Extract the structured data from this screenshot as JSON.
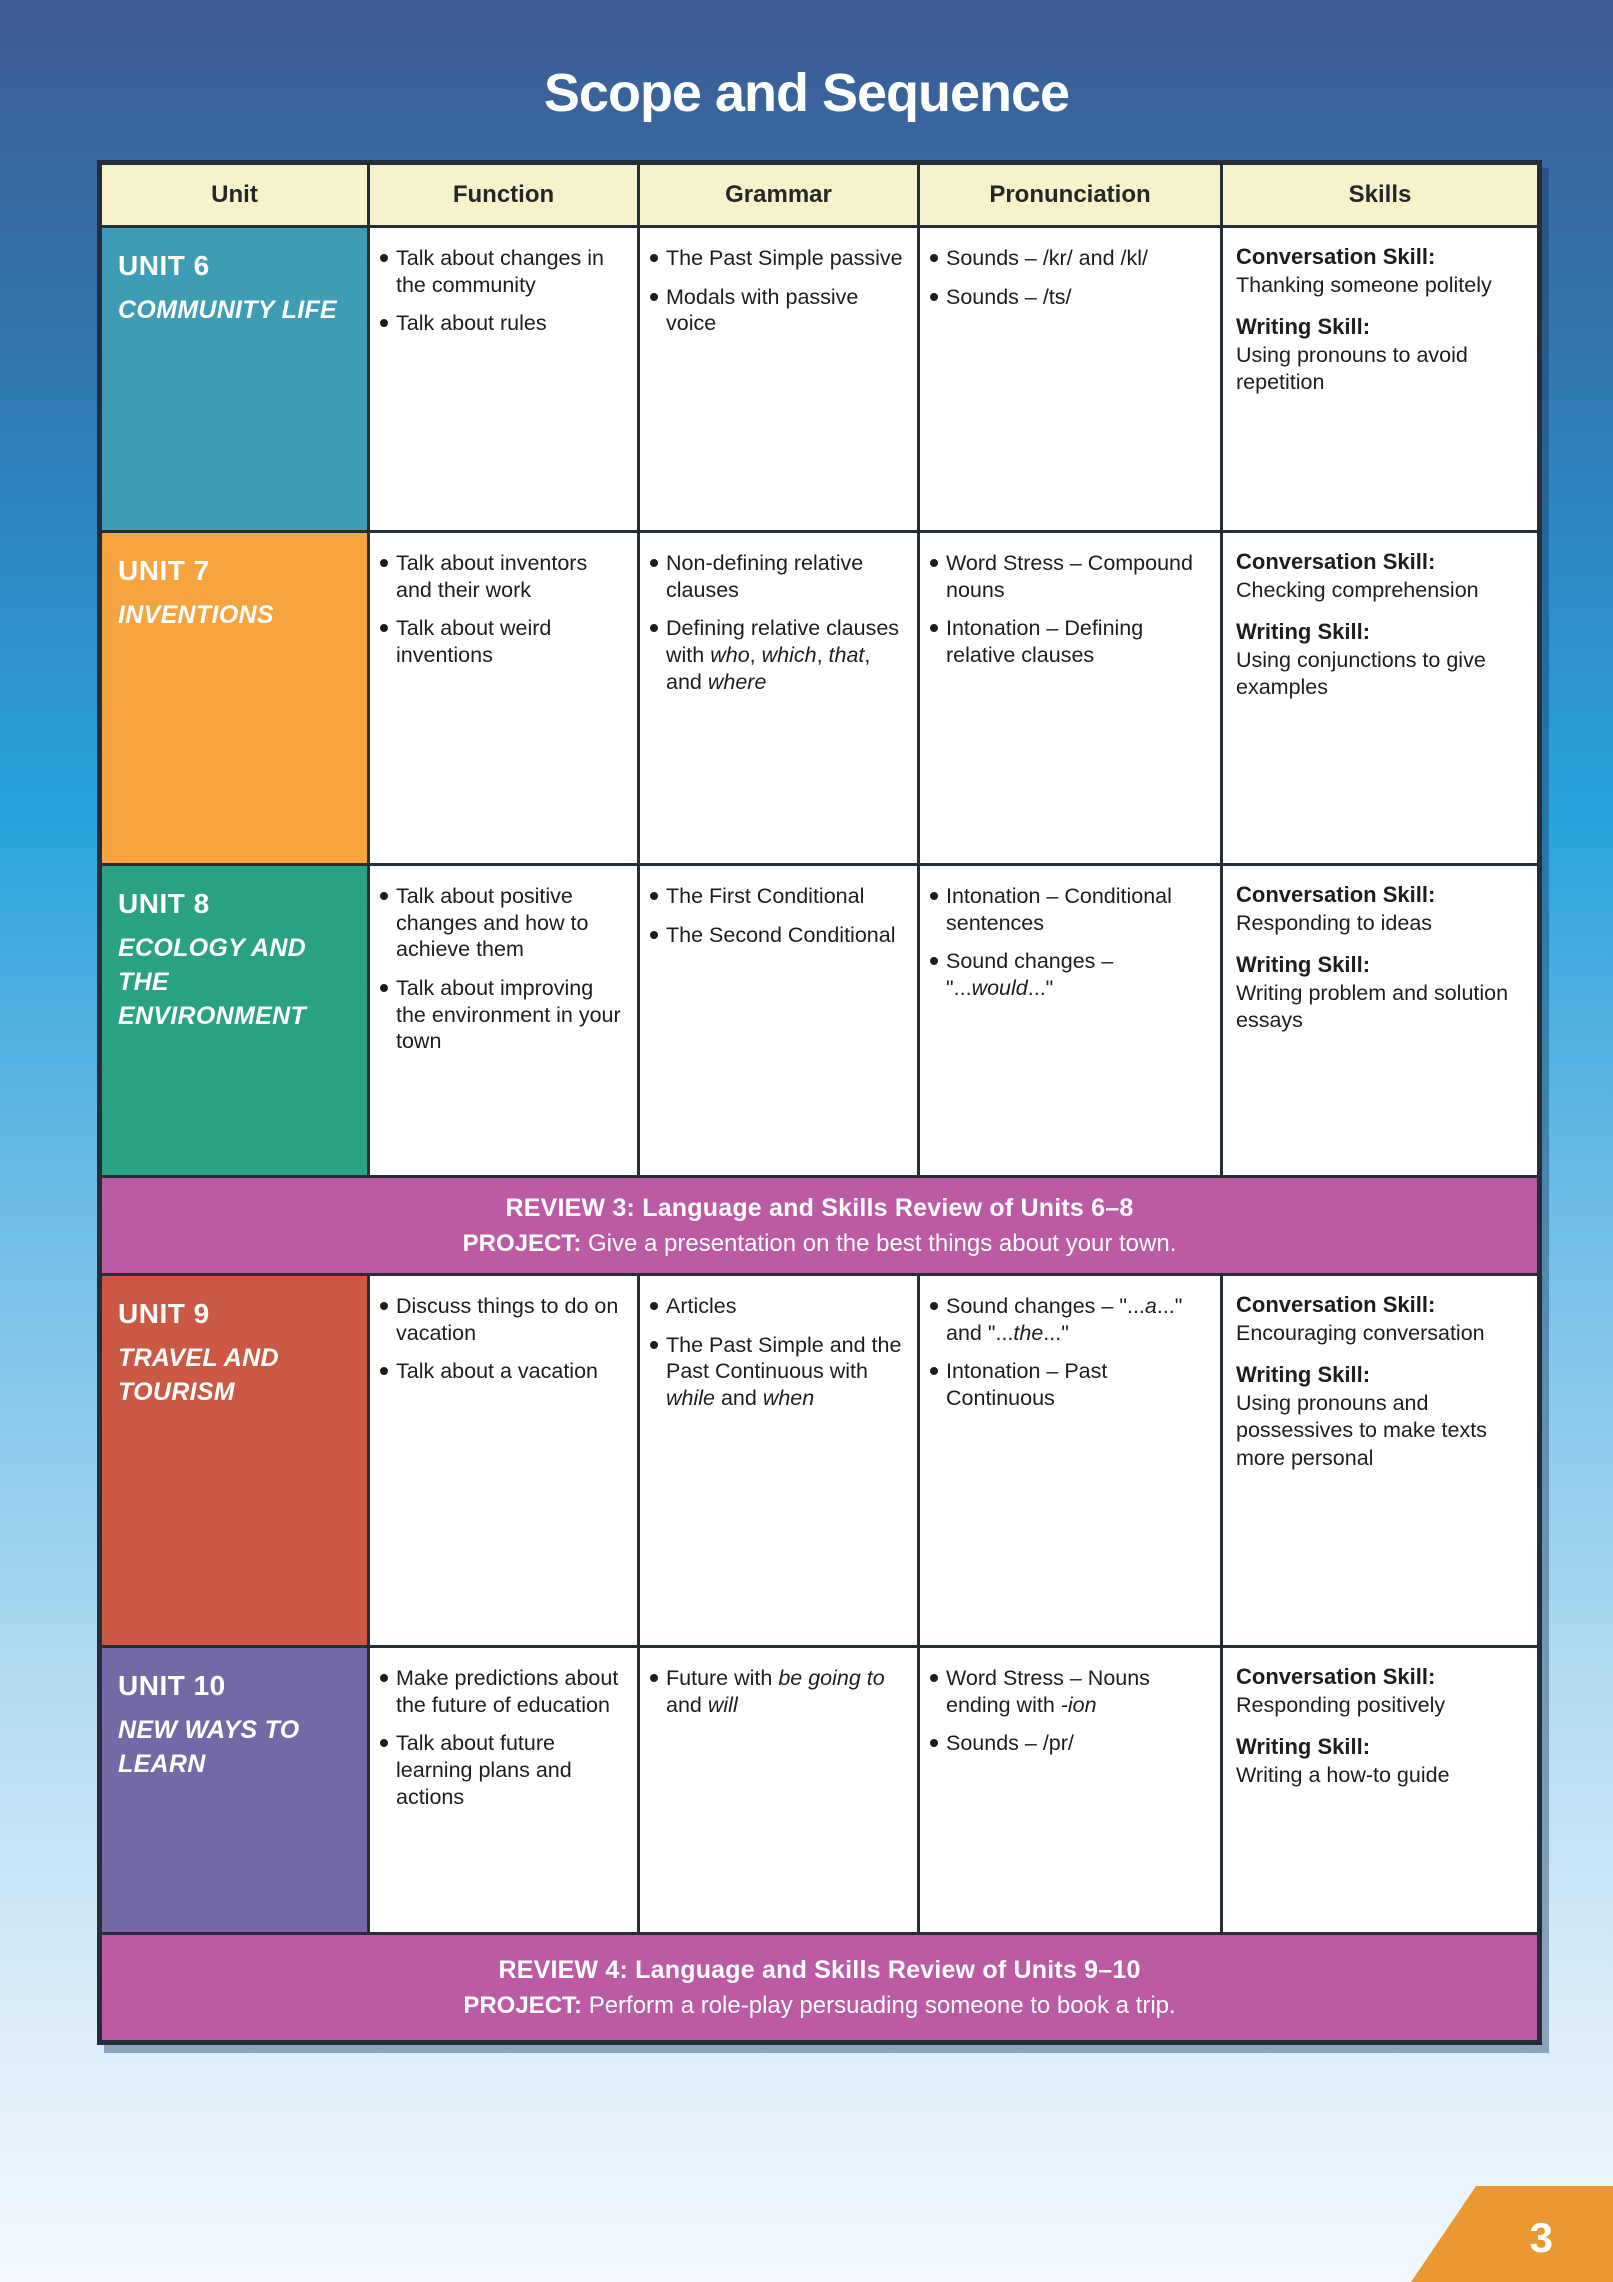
{
  "page": {
    "title": "Scope and Sequence",
    "page_number": "3"
  },
  "colors": {
    "background_top": "#3d5b94",
    "background_mid": "#2aa3dc",
    "background_bottom": "#f2f8fd",
    "header_bg": "#f6f3cc",
    "table_border": "#252e36",
    "review_bg": "#bc5ba4",
    "corner_bg": "#e9992f",
    "body_text": "#1d1d1b"
  },
  "table": {
    "headers": [
      "Unit",
      "Function",
      "Grammar",
      "Pronunciation",
      "Skills"
    ],
    "rows": [
      {
        "type": "unit",
        "id": "UNIT 6",
        "title": "COMMUNITY LIFE",
        "color": "#3e9db5",
        "function": [
          "Talk about changes in the community",
          "Talk about rules"
        ],
        "grammar": [
          "The Past Simple passive",
          "Modals with passive voice"
        ],
        "pronunciation": [
          "Sounds – /kr/ and /kl/",
          "Sounds – /ts/"
        ],
        "skills": {
          "conversation_label": "Conversation Skill:",
          "conversation": "Thanking someone politely",
          "writing_label": "Writing Skill:",
          "writing": "Using pronouns to avoid repetition"
        }
      },
      {
        "type": "unit",
        "id": "UNIT 7",
        "title": "INVENTIONS",
        "color": "#f5a440",
        "function": [
          "Talk about inventors and their work",
          "Talk about weird inventions"
        ],
        "grammar": [
          "Non-defining relative clauses",
          "Defining relative clauses with *who*, *which*, *that*, and *where*"
        ],
        "pronunciation": [
          "Word Stress – Compound nouns",
          "Intonation – Defining relative clauses"
        ],
        "skills": {
          "conversation_label": "Conversation Skill:",
          "conversation": "Checking comprehension",
          "writing_label": "Writing Skill:",
          "writing": "Using conjunctions to give examples"
        }
      },
      {
        "type": "unit",
        "id": "UNIT 8",
        "title": "ECOLOGY AND THE ENVIRONMENT",
        "color": "#29a183",
        "function": [
          "Talk about positive changes and how to achieve them",
          "Talk about improving the environment in your town"
        ],
        "grammar": [
          "The First Conditional",
          "The Second Conditional"
        ],
        "pronunciation": [
          "Intonation – Conditional sentences",
          "Sound changes – \"...*would*...\""
        ],
        "skills": {
          "conversation_label": "Conversation Skill:",
          "conversation": "Responding to ideas",
          "writing_label": "Writing Skill:",
          "writing": "Writing problem and solution essays"
        }
      },
      {
        "type": "review",
        "title": "REVIEW 3: Language and Skills Review of Units 6–8",
        "project_label": "PROJECT:",
        "project_text": "Give a presentation on the best things about your town."
      },
      {
        "type": "unit",
        "id": "UNIT 9",
        "title": "TRAVEL AND TOURISM",
        "color": "#cb5843",
        "function": [
          "Discuss things to do on vacation",
          "Talk about a vacation"
        ],
        "grammar": [
          "Articles",
          "The Past Simple and the Past Continuous with *while* and *when*"
        ],
        "pronunciation": [
          "Sound changes – \"...*a*...\" and \"...*the*...\"",
          "Intonation – Past Continuous"
        ],
        "skills": {
          "conversation_label": "Conversation Skill:",
          "conversation": "Encouraging conversation",
          "writing_label": "Writing Skill:",
          "writing": "Using pronouns and possessives to make texts more personal"
        }
      },
      {
        "type": "unit",
        "id": "UNIT 10",
        "title": "NEW WAYS TO LEARN",
        "color": "#7568a6",
        "function": [
          "Make predictions about the future of education",
          "Talk about future learning plans and actions"
        ],
        "grammar": [
          "Future with *be going to* and *will*"
        ],
        "pronunciation": [
          "Word Stress – Nouns ending with *-ion*",
          "Sounds – /pr/"
        ],
        "skills": {
          "conversation_label": "Conversation Skill:",
          "conversation": "Responding positively",
          "writing_label": "Writing Skill:",
          "writing": "Writing a how-to guide"
        }
      },
      {
        "type": "review",
        "title": "REVIEW 4: Language and Skills Review of Units 9–10",
        "project_label": "PROJECT:",
        "project_text": "Perform a role-play persuading someone to book a trip."
      }
    ]
  }
}
